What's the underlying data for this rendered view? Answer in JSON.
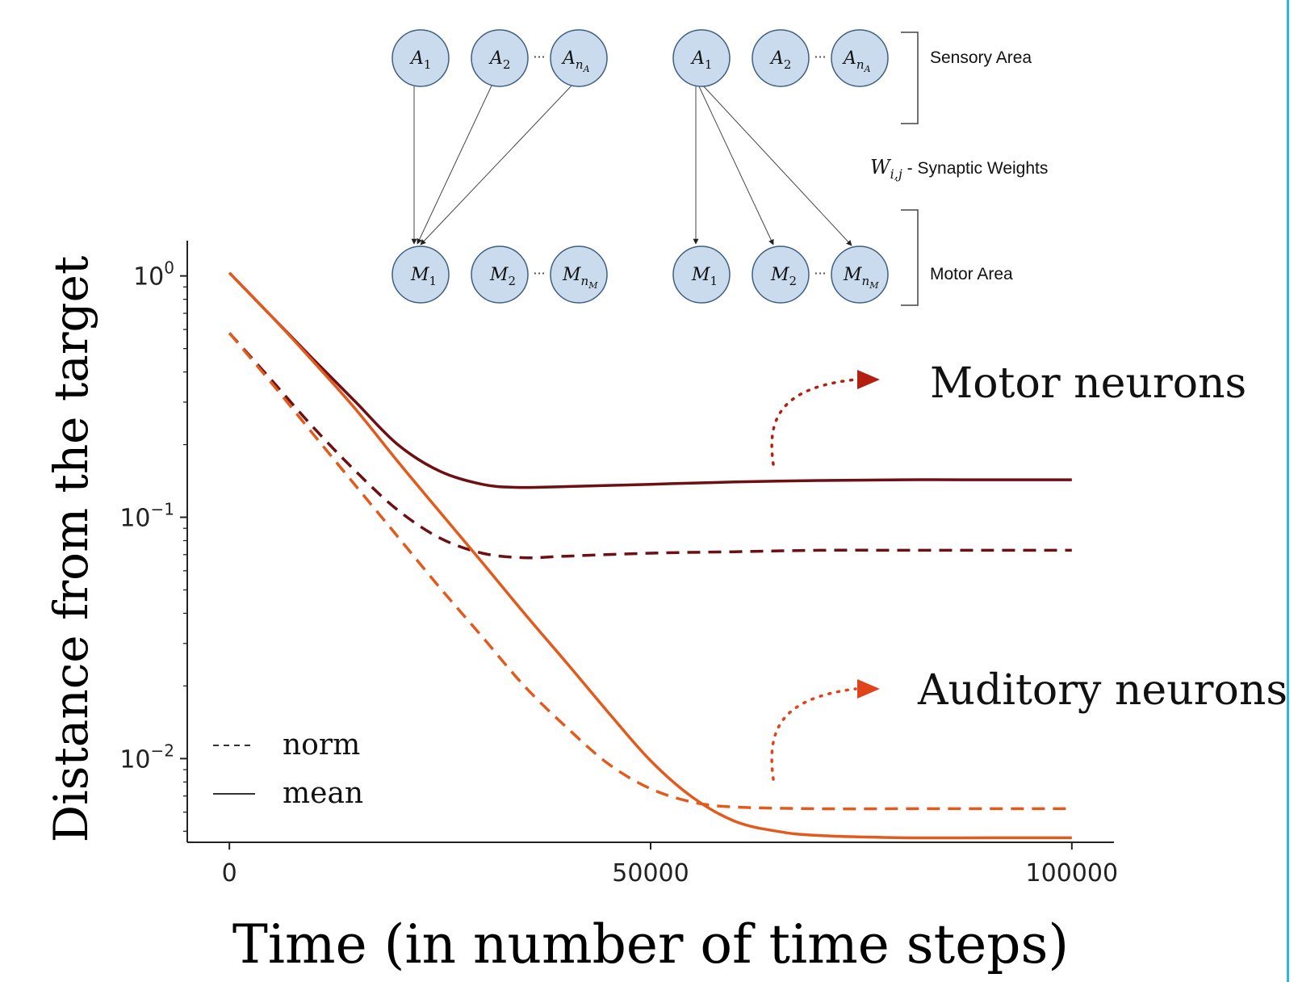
{
  "chart_data": {
    "type": "line",
    "xlabel": "Time (in number of time steps)",
    "ylabel": "Distance from the target",
    "yscale": "log",
    "xlim": [
      -5000,
      105000
    ],
    "ylim": [
      0.0045,
      1.4
    ],
    "xticks": [
      0,
      50000,
      100000
    ],
    "xtick_labels": [
      "0",
      "50000",
      "100000"
    ],
    "yticks": [
      1,
      0.1,
      0.01
    ],
    "ytick_labels": [
      "10",
      "10",
      "10"
    ],
    "ytick_exponents": [
      "0",
      "−1",
      "−2"
    ],
    "grid": false,
    "legend": {
      "placement": "lower-left",
      "entries": [
        {
          "label": "norm",
          "style": "dashed"
        },
        {
          "label": "mean",
          "style": "solid"
        }
      ]
    },
    "series": [
      {
        "group": "Motor neurons",
        "stat": "mean",
        "style": "solid",
        "color": "#6e0f14",
        "x": [
          0,
          5000,
          10000,
          15000,
          20000,
          25000,
          30000,
          34000,
          40000,
          50000,
          60000,
          70000,
          80000,
          90000,
          100000
        ],
        "y": [
          1.03,
          0.68,
          0.45,
          0.3,
          0.2,
          0.155,
          0.137,
          0.133,
          0.134,
          0.137,
          0.14,
          0.142,
          0.143,
          0.143,
          0.143
        ]
      },
      {
        "group": "Motor neurons",
        "stat": "norm",
        "style": "dashed",
        "color": "#6e0f14",
        "x": [
          0,
          5000,
          10000,
          15000,
          20000,
          25000,
          30000,
          35000,
          40000,
          50000,
          60000,
          70000,
          80000,
          90000,
          100000
        ],
        "y": [
          0.58,
          0.37,
          0.235,
          0.155,
          0.107,
          0.082,
          0.071,
          0.068,
          0.069,
          0.071,
          0.072,
          0.073,
          0.073,
          0.073,
          0.073
        ]
      },
      {
        "group": "Auditory neurons",
        "stat": "mean",
        "style": "solid",
        "color": "#e25a1c",
        "x": [
          0,
          5000,
          10000,
          15000,
          20000,
          25000,
          30000,
          35000,
          40000,
          45000,
          50000,
          55000,
          60000,
          65000,
          70000,
          80000,
          90000,
          100000
        ],
        "y": [
          1.03,
          0.68,
          0.44,
          0.28,
          0.17,
          0.105,
          0.065,
          0.04,
          0.025,
          0.0155,
          0.0098,
          0.0069,
          0.0055,
          0.005,
          0.0048,
          0.0047,
          0.0047,
          0.0047
        ]
      },
      {
        "group": "Auditory neurons",
        "stat": "norm",
        "style": "dashed",
        "color": "#e25a1c",
        "x": [
          0,
          5000,
          10000,
          15000,
          20000,
          25000,
          30000,
          35000,
          40000,
          45000,
          50000,
          55000,
          60000,
          70000,
          80000,
          90000,
          100000
        ],
        "y": [
          0.58,
          0.36,
          0.22,
          0.135,
          0.083,
          0.051,
          0.032,
          0.02,
          0.0135,
          0.0095,
          0.0075,
          0.0066,
          0.0063,
          0.0062,
          0.0062,
          0.0062,
          0.0062
        ]
      }
    ],
    "annotations": [
      "Motor neurons",
      "Auditory neurons"
    ]
  },
  "colors": {
    "motor": "#6e0f14",
    "auditory": "#e25a1c",
    "arrow_motor": "#b3200e",
    "arrow_auditory": "#e0441a",
    "accent_border": "#29b6e8"
  },
  "diagram": {
    "sensory_area": "Sensory Area",
    "motor_area": "Motor Area",
    "weights_symbol": "W",
    "weights_subscript": "i,j",
    "weights_text": " - Synaptic Weights",
    "ellipsis": "···",
    "sensory_nodes": [
      {
        "base": "A",
        "sub": "1"
      },
      {
        "base": "A",
        "sub": "2"
      },
      {
        "base": "A",
        "sub": "n",
        "subsub": "A"
      }
    ],
    "motor_nodes": [
      {
        "base": "M",
        "sub": "1"
      },
      {
        "base": "M",
        "sub": "2"
      },
      {
        "base": "M",
        "sub": "n",
        "subsub": "M"
      }
    ]
  }
}
